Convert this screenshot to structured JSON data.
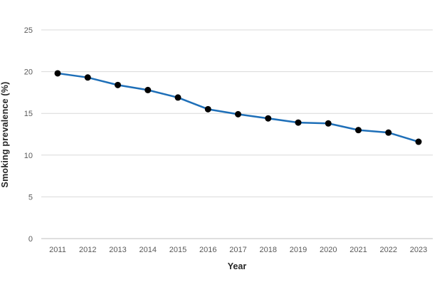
{
  "chart_data": {
    "type": "line",
    "title": "",
    "xlabel": "Year",
    "ylabel": "Smoking prevalence (%)",
    "categories": [
      "2011",
      "2012",
      "2013",
      "2014",
      "2015",
      "2016",
      "2017",
      "2018",
      "2019",
      "2020",
      "2021",
      "2022",
      "2023"
    ],
    "series": [
      {
        "name": "Smoking prevalence",
        "values": [
          19.8,
          19.3,
          18.4,
          17.8,
          16.9,
          15.5,
          14.9,
          14.4,
          13.9,
          13.8,
          13.0,
          12.7,
          11.6
        ]
      }
    ],
    "ylim": [
      0,
      25
    ],
    "yticks": [
      0,
      5,
      10,
      15,
      20,
      25
    ],
    "grid": "horizontal",
    "legend": "none",
    "colors": {
      "line": "#1E6FB8",
      "marker": "#000000",
      "gridline": "#D9D9D9",
      "axis_line": "#BFBFBF",
      "tick_label": "#595959",
      "axis_title": "#262626",
      "background": "#FFFFFF"
    }
  }
}
